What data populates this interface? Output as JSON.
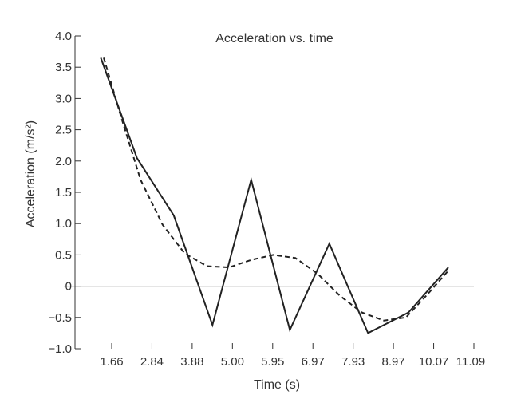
{
  "chart_data": {
    "type": "line",
    "title": "Acceleration vs. time",
    "xlabel": "Time (s)",
    "ylabel": "Acceleration (m/s²)",
    "x_ticks": [
      "1.66",
      "2.84",
      "3.88",
      "5.00",
      "5.95",
      "6.97",
      "7.93",
      "8.97",
      "10.07",
      "11.09"
    ],
    "y_ticks": [
      4.0,
      3.5,
      3.0,
      2.5,
      2.0,
      1.5,
      1.0,
      0.5,
      0,
      -0.5,
      -1.0
    ],
    "y_tick_labels": [
      "4.0",
      "3.5",
      "3.0",
      "2.5",
      "2.0",
      "1.5",
      "1.0",
      "0.5",
      "0",
      "−0.5",
      "−1.0"
    ],
    "ylim": [
      -1.0,
      4.0
    ],
    "xlim": [
      0.55,
      11.2
    ],
    "series": [
      {
        "style": "solid",
        "color": "#222222",
        "x": [
          1.12,
          2.1,
          3.1,
          4.15,
          5.2,
          6.25,
          7.32,
          8.37,
          9.47,
          10.55
        ],
        "y": [
          3.65,
          2.05,
          1.13,
          -0.62,
          1.7,
          -0.7,
          0.68,
          -0.75,
          -0.42,
          0.3
        ]
      },
      {
        "style": "dashed",
        "color": "#222222",
        "x": [
          1.2,
          1.7,
          2.2,
          2.8,
          3.4,
          4.0,
          4.6,
          5.2,
          5.8,
          6.4,
          7.0,
          7.6,
          8.2,
          8.8,
          9.4,
          10.0,
          10.55
        ],
        "y": [
          3.65,
          2.65,
          1.7,
          0.98,
          0.52,
          0.32,
          0.3,
          0.42,
          0.5,
          0.45,
          0.2,
          -0.15,
          -0.42,
          -0.55,
          -0.5,
          -0.12,
          0.25
        ]
      }
    ]
  }
}
